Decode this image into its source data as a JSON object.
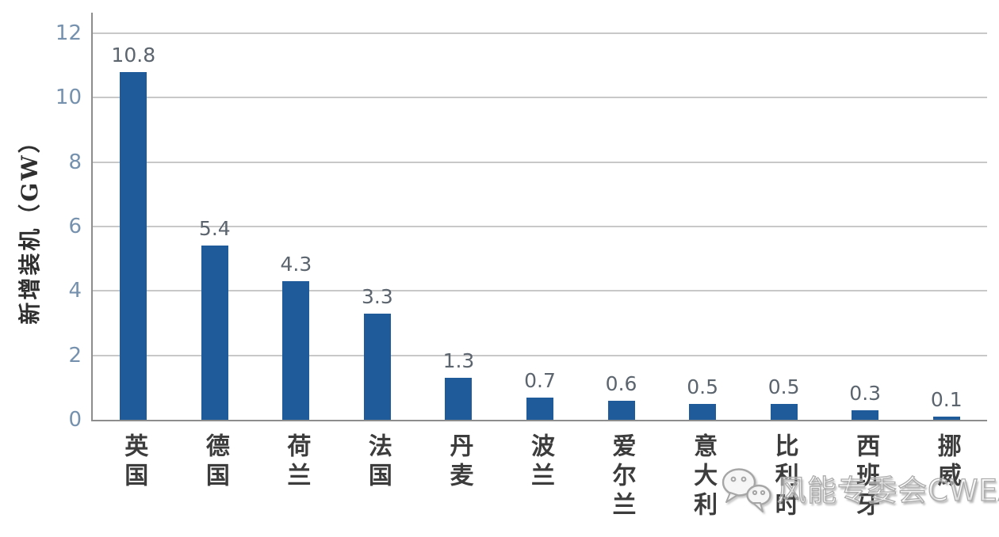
{
  "chart_data": {
    "type": "bar",
    "title": "",
    "ylabel": "新增装机（GW）",
    "xlabel": "",
    "ylim": [
      0,
      12
    ],
    "yticks": [
      0,
      2,
      4,
      6,
      8,
      10,
      12
    ],
    "grid": true,
    "legend_position": "none",
    "categories": [
      "英国",
      "德国",
      "荷兰",
      "法国",
      "丹麦",
      "波兰",
      "爱尔兰",
      "意大利",
      "比利时",
      "西班牙",
      "挪威"
    ],
    "values": [
      10.8,
      5.4,
      4.3,
      3.3,
      1.3,
      0.7,
      0.6,
      0.5,
      0.5,
      0.3,
      0.1
    ],
    "value_labels": [
      "10.8",
      "5.4",
      "4.3",
      "3.3",
      "1.3",
      "0.7",
      "0.6",
      "0.5",
      "0.5",
      "0.3",
      "0.1"
    ],
    "colors": {
      "bar": "#1f5a9b",
      "gridline": "#c8c8c8",
      "axis_line": "#8d8d8d",
      "tick_label": "#7591ad",
      "value_label": "#5c646e",
      "category_label": "#3c3c3c",
      "watermark": "#ababab"
    }
  },
  "watermark": {
    "icon": "wechat-icon",
    "text": "风能专委会CWEA"
  }
}
